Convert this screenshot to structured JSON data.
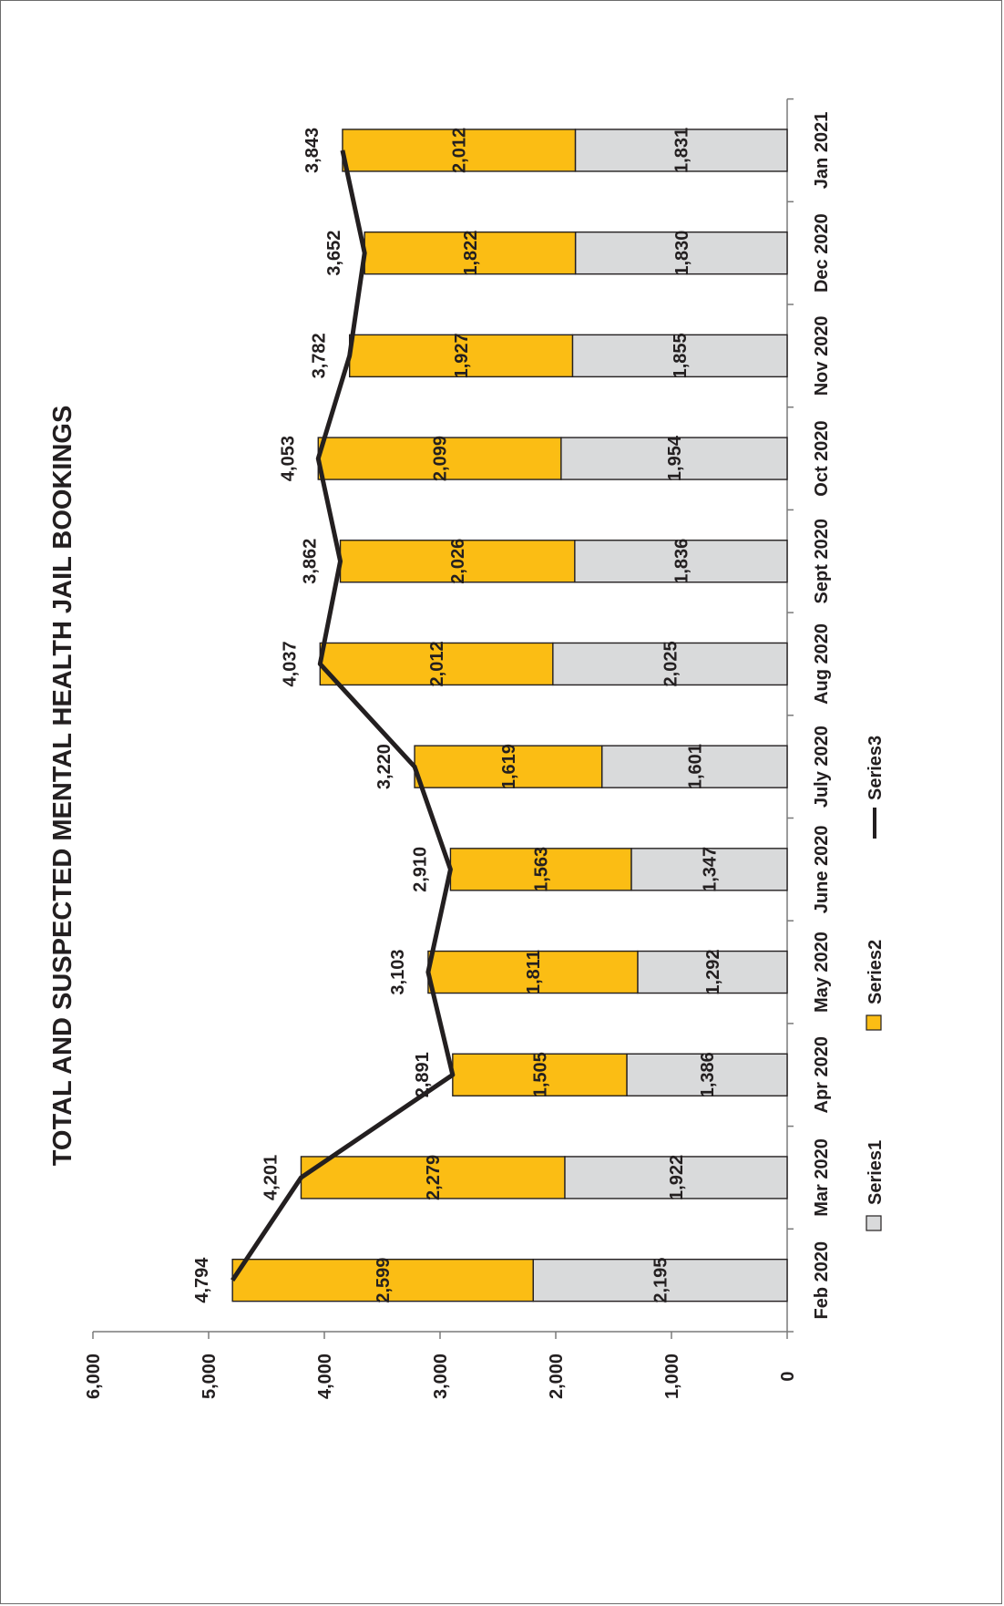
{
  "chart_data": {
    "type": "bar",
    "orientation": "rotated-90-ccw",
    "stacked": true,
    "title": "TOTAL AND SUSPECTED MENTAL HEALTH JAIL BOOKINGS",
    "xlabel": "",
    "ylabel": "",
    "categories": [
      "Feb 2020",
      "Mar 2020",
      "Apr 2020",
      "May 2020",
      "June 2020",
      "July 2020",
      "Aug 2020",
      "Sept 2020",
      "Oct 2020",
      "Nov 2020",
      "Dec 2020",
      "Jan 2021"
    ],
    "series": [
      {
        "name": "Series1",
        "kind": "bar",
        "color": "#d9dadb",
        "values": [
          2195,
          1922,
          1386,
          1292,
          1347,
          1601,
          2025,
          1836,
          1954,
          1855,
          1830,
          1831
        ]
      },
      {
        "name": "Series2",
        "kind": "bar",
        "color": "#fbbd14",
        "values": [
          2599,
          2279,
          1505,
          1811,
          1563,
          1619,
          2012,
          2026,
          2099,
          1927,
          1822,
          2012
        ]
      },
      {
        "name": "Series3",
        "kind": "line",
        "color": "#231f20",
        "values": [
          4794,
          4201,
          2891,
          3103,
          2910,
          3220,
          4037,
          3862,
          4053,
          3782,
          3652,
          3843
        ]
      }
    ],
    "ylim": [
      0,
      6000
    ],
    "yticks": [
      0,
      1000,
      2000,
      3000,
      4000,
      5000,
      6000
    ],
    "ytick_labels": [
      "0",
      "1,000",
      "2,000",
      "3,000",
      "4,000",
      "5,000",
      "6,000"
    ],
    "data_labels": {
      "Series1": [
        "2,195",
        "1,922",
        "1,386",
        "1,292",
        "1,347",
        "1,601",
        "2,025",
        "1,836",
        "1,954",
        "1,855",
        "1,830",
        "1,831"
      ],
      "Series2": [
        "2,599",
        "2,279",
        "1,505",
        "1,811",
        "1,563",
        "1,619",
        "2,012",
        "2,026",
        "2,099",
        "1,927",
        "1,822",
        "2,012"
      ],
      "Series3": [
        "4,794",
        "4,201",
        "2,891",
        "3,103",
        "2,910",
        "3,220",
        "4,037",
        "3,862",
        "4,053",
        "3,782",
        "3,652",
        "3,843"
      ]
    },
    "grid": false,
    "legend_position": "bottom"
  }
}
